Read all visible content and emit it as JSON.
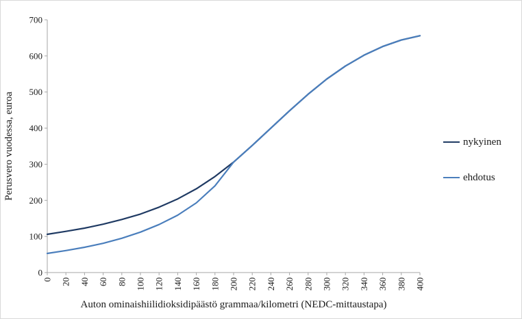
{
  "figure": {
    "background": "#ffffff",
    "border_color": "#d9d9d9"
  },
  "chart_data": {
    "type": "line",
    "x": [
      0,
      20,
      40,
      60,
      80,
      100,
      120,
      140,
      160,
      180,
      200,
      220,
      240,
      260,
      280,
      300,
      320,
      340,
      360,
      380,
      400
    ],
    "series": [
      {
        "name": "nykyinen",
        "color": "#1f3a63",
        "values": [
          106,
          114,
          123,
          134,
          147,
          162,
          181,
          204,
          232,
          266,
          306,
          352,
          400,
          448,
          494,
          536,
          572,
          602,
          626,
          644,
          656
        ]
      },
      {
        "name": "ehdotus",
        "color": "#4a7ebc",
        "values": [
          53,
          61,
          70,
          81,
          95,
          112,
          133,
          159,
          193,
          240,
          306,
          352,
          400,
          448,
          494,
          536,
          572,
          602,
          626,
          644,
          656
        ]
      }
    ],
    "xlabel": "Auton ominaishiilidioksidipäästö  grammaa/kilometri (NEDC-mittaustapa)",
    "ylabel": "Perusvero vuodessa, euroa",
    "xlim": [
      0,
      400
    ],
    "ylim": [
      0,
      700
    ],
    "yticks": [
      0,
      100,
      200,
      300,
      400,
      500,
      600,
      700
    ],
    "grid": false,
    "legend_position": "right",
    "axis_color": "#a6a6a6",
    "text_color": "#1a1a1a"
  }
}
